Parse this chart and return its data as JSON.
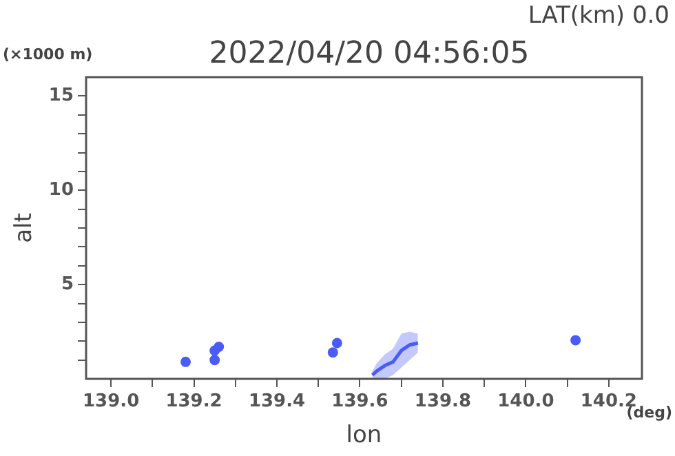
{
  "chart_data": {
    "type": "line",
    "title": "2022/04/20 04:56:05",
    "subtitle": "LAT(km) 0.0",
    "xlabel": "lon",
    "ylabel": "alt",
    "annotations": [
      "(×1000 m)",
      "(deg)"
    ],
    "xlim": [
      138.94,
      140.28
    ],
    "ylim": [
      0,
      16
    ],
    "xticks": [
      {
        "value": 139,
        "label": "139.0"
      },
      {
        "value": 139.1,
        "label": null
      },
      139.2,
      {
        "value": 139.3,
        "label": null
      },
      139.4,
      {
        "value": 139.5,
        "label": null
      },
      139.6,
      {
        "value": 139.7,
        "label": null
      },
      139.8,
      {
        "value": 139.9,
        "label": null
      },
      {
        "value": 140,
        "label": "140.0"
      },
      {
        "value": 140.1,
        "label": null
      },
      140.2
    ],
    "yticks": [
      {
        "value": 1,
        "label": null
      },
      {
        "value": 2,
        "label": null
      },
      {
        "value": 3,
        "label": null
      },
      {
        "value": 4,
        "label": null
      },
      5,
      {
        "value": 6,
        "label": null
      },
      {
        "value": 7,
        "label": null
      },
      {
        "value": 8,
        "label": null
      },
      {
        "value": 9,
        "label": null
      },
      10,
      {
        "value": 11,
        "label": null
      },
      {
        "value": 12,
        "label": null
      },
      {
        "value": 13,
        "label": null
      },
      {
        "value": 14,
        "label": null
      },
      15
    ],
    "series": [
      {
        "type": "scatter",
        "marker": "circle",
        "color": "#4a5cf5",
        "x": [
          139.18,
          139.25,
          139.25,
          139.26,
          139.535,
          139.545,
          140.12
        ],
        "values": [
          0.9,
          1.0,
          1.5,
          1.7,
          1.4,
          1.9,
          2.05
        ]
      },
      {
        "color": "#4a5cf5",
        "x": [
          139.63,
          139.64,
          139.66,
          139.68,
          139.7,
          139.72,
          139.74
        ],
        "values": [
          0.2,
          0.4,
          0.7,
          0.9,
          1.5,
          1.8,
          1.9
        ],
        "lower": [
          0,
          0,
          0,
          0.2,
          0.6,
          1.0,
          1.4
        ],
        "upper": [
          0.4,
          0.8,
          1.3,
          1.6,
          2.4,
          2.5,
          2.4
        ]
      }
    ]
  }
}
